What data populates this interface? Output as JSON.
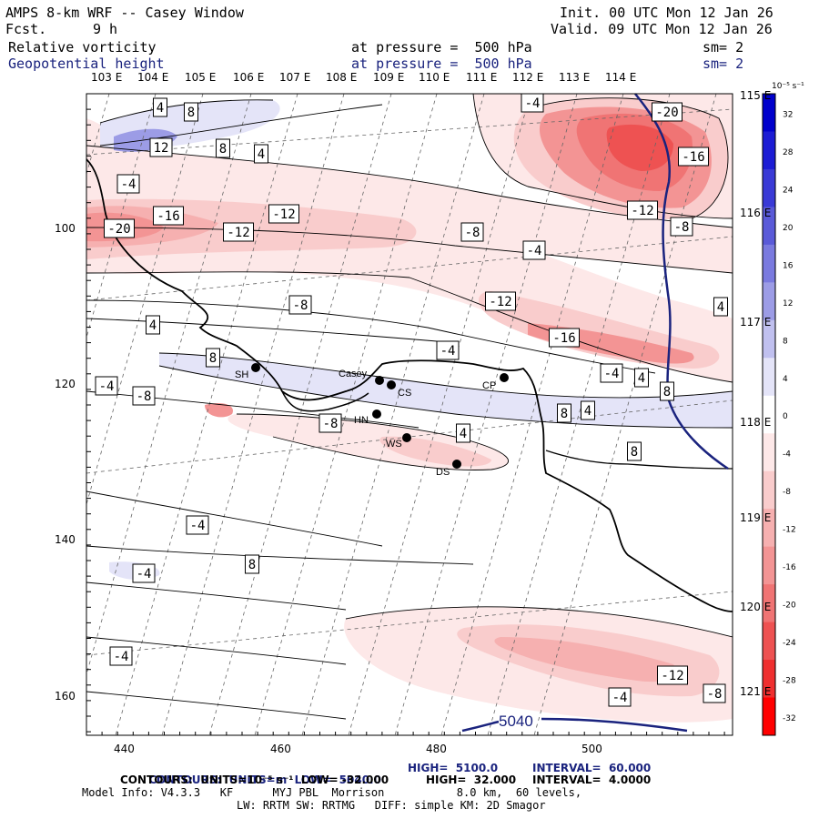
{
  "header": {
    "title": "AMPS 8-km WRF -- Casey Window",
    "fcst_label": "Fcst.",
    "fcst_value": "9 h",
    "init": "Init. 00 UTC Mon 12 Jan 26",
    "valid": "Valid. 09 UTC Mon 12 Jan 26",
    "field1_name": "Relative vorticity",
    "field1_level": "at pressure =  500 hPa",
    "field1_sm": "sm= 2",
    "field2_name": "Geopotential height",
    "field2_level": "at pressure =  500 hPa",
    "field2_sm": "sm= 2"
  },
  "axes": {
    "top_lon": [
      "103 E",
      "104 E",
      "105 E",
      "106 E",
      "107 E",
      "108 E",
      "109 E",
      "110 E",
      "111 E",
      "112 E",
      "113 E",
      "114 E"
    ],
    "right_lat": [
      "115 E",
      "116 E",
      "117 E",
      "118 E",
      "119 E",
      "120 E",
      "121 E"
    ],
    "x_ticks": [
      "440",
      "460",
      "480",
      "500"
    ],
    "y_ticks": [
      "100",
      "120",
      "140",
      "160"
    ]
  },
  "colorbar": {
    "unit": "10⁻⁵ s⁻¹",
    "labels": [
      "32",
      "28",
      "24",
      "20",
      "16",
      "12",
      "8",
      "4",
      "0",
      "-4",
      "-8",
      "-12",
      "-16",
      "-20",
      "-24",
      "-28",
      "-32"
    ],
    "colors": [
      "#0000cc",
      "#1c1cd4",
      "#3a3ad6",
      "#5a5ad8",
      "#7a7adf",
      "#9c9ce6",
      "#c0c0ef",
      "#e4e4f8",
      "#ffffff",
      "#fde8e8",
      "#f9cccc",
      "#f6b0b0",
      "#f39494",
      "#f07474",
      "#ee5252",
      "#ef2f2f",
      "#ff0000"
    ]
  },
  "stations": [
    {
      "name": "SH"
    },
    {
      "name": "Casey"
    },
    {
      "name": "CS"
    },
    {
      "name": "HN"
    },
    {
      "name": "WS"
    },
    {
      "name": "DS"
    },
    {
      "name": "CP"
    }
  ],
  "contour_labels": [
    "4",
    "8",
    "12",
    "8",
    "4",
    "-4",
    "-16",
    "-12",
    "-20",
    "-12",
    "-8",
    "-4",
    "-20",
    "-16",
    "-12",
    "-8",
    "-4",
    "-8",
    "-12",
    "-16",
    "-4",
    "4",
    "8",
    "-4",
    "-8",
    "8",
    "4",
    "8",
    "-4",
    "4",
    "8",
    "-8",
    "4",
    "-4",
    "8",
    "-4",
    "-4",
    "-12",
    "-8",
    "-4",
    "4"
  ],
  "height_label": "5040",
  "footer": {
    "line1_a": "CONTOURS:  UNITS=m  LOW=  5040.0",
    "line1_b": "HIGH=  5100.0",
    "line1_c": "INTERVAL=  60.000",
    "line2_a": "CONTOURS:  UNITS=10⁻⁵ s⁻¹  LOW= -32.000",
    "line2_b": "HIGH=  32.000",
    "line2_c": "INTERVAL=  4.0000",
    "line3": "Model Info: V4.3.3   KF      MYJ PBL  Morrison           8.0 km,  60 levels,",
    "line4": "LW: RRTM SW: RRTMG   DIFF: simple KM: 2D Smagor"
  }
}
